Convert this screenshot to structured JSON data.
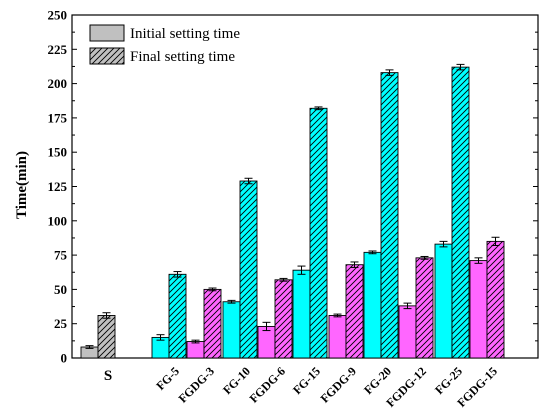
{
  "chart_data": {
    "type": "bar",
    "ylabel": "Time(min)",
    "xlabel": "",
    "ylim": [
      0,
      250
    ],
    "yticks": [
      0,
      25,
      50,
      75,
      100,
      125,
      150,
      175,
      200,
      225,
      250
    ],
    "legend_position": "top-left",
    "series": [
      {
        "name": "Initial setting time",
        "pattern": "solid"
      },
      {
        "name": "Final setting time",
        "pattern": "hatched"
      }
    ],
    "groups": [
      {
        "label": "S",
        "color": "#c0c0c0",
        "bars": [
          {
            "initial": 8,
            "initial_err": 1
          },
          {
            "final": 31,
            "final_err": 2
          }
        ],
        "initial": 8,
        "initial_err": 1,
        "final": 31,
        "final_err": 2
      },
      {
        "label": "FG-5",
        "color": "#00ffff",
        "initial": 15,
        "initial_err": 2,
        "final": 61,
        "final_err": 2
      },
      {
        "label": "FGDG-3",
        "color": "#ff66ff",
        "initial": 12,
        "initial_err": 1,
        "final": 50,
        "final_err": 1
      },
      {
        "label": "FG-10",
        "color": "#00ffff",
        "initial": 41,
        "initial_err": 1,
        "final": 129,
        "final_err": 2
      },
      {
        "label": "FGDG-6",
        "color": "#ff66ff",
        "initial": 23,
        "initial_err": 3,
        "final": 57,
        "final_err": 1
      },
      {
        "label": "FG-15",
        "color": "#00ffff",
        "initial": 64,
        "initial_err": 3,
        "final": 182,
        "final_err": 1
      },
      {
        "label": "FGDG-9",
        "color": "#ff66ff",
        "initial": 31,
        "initial_err": 1,
        "final": 68,
        "final_err": 2
      },
      {
        "label": "FG-20",
        "color": "#00ffff",
        "initial": 77,
        "initial_err": 1,
        "final": 208,
        "final_err": 2
      },
      {
        "label": "FGDG-12",
        "color": "#ff66ff",
        "initial": 38,
        "initial_err": 2,
        "final": 73,
        "final_err": 1
      },
      {
        "label": "FG-25",
        "color": "#00ffff",
        "initial": 83,
        "initial_err": 2,
        "final": 212,
        "final_err": 2
      },
      {
        "label": "FGDG-15",
        "color": "#ff66ff",
        "initial": 71,
        "initial_err": 2,
        "final": 85,
        "final_err": 3
      }
    ]
  }
}
